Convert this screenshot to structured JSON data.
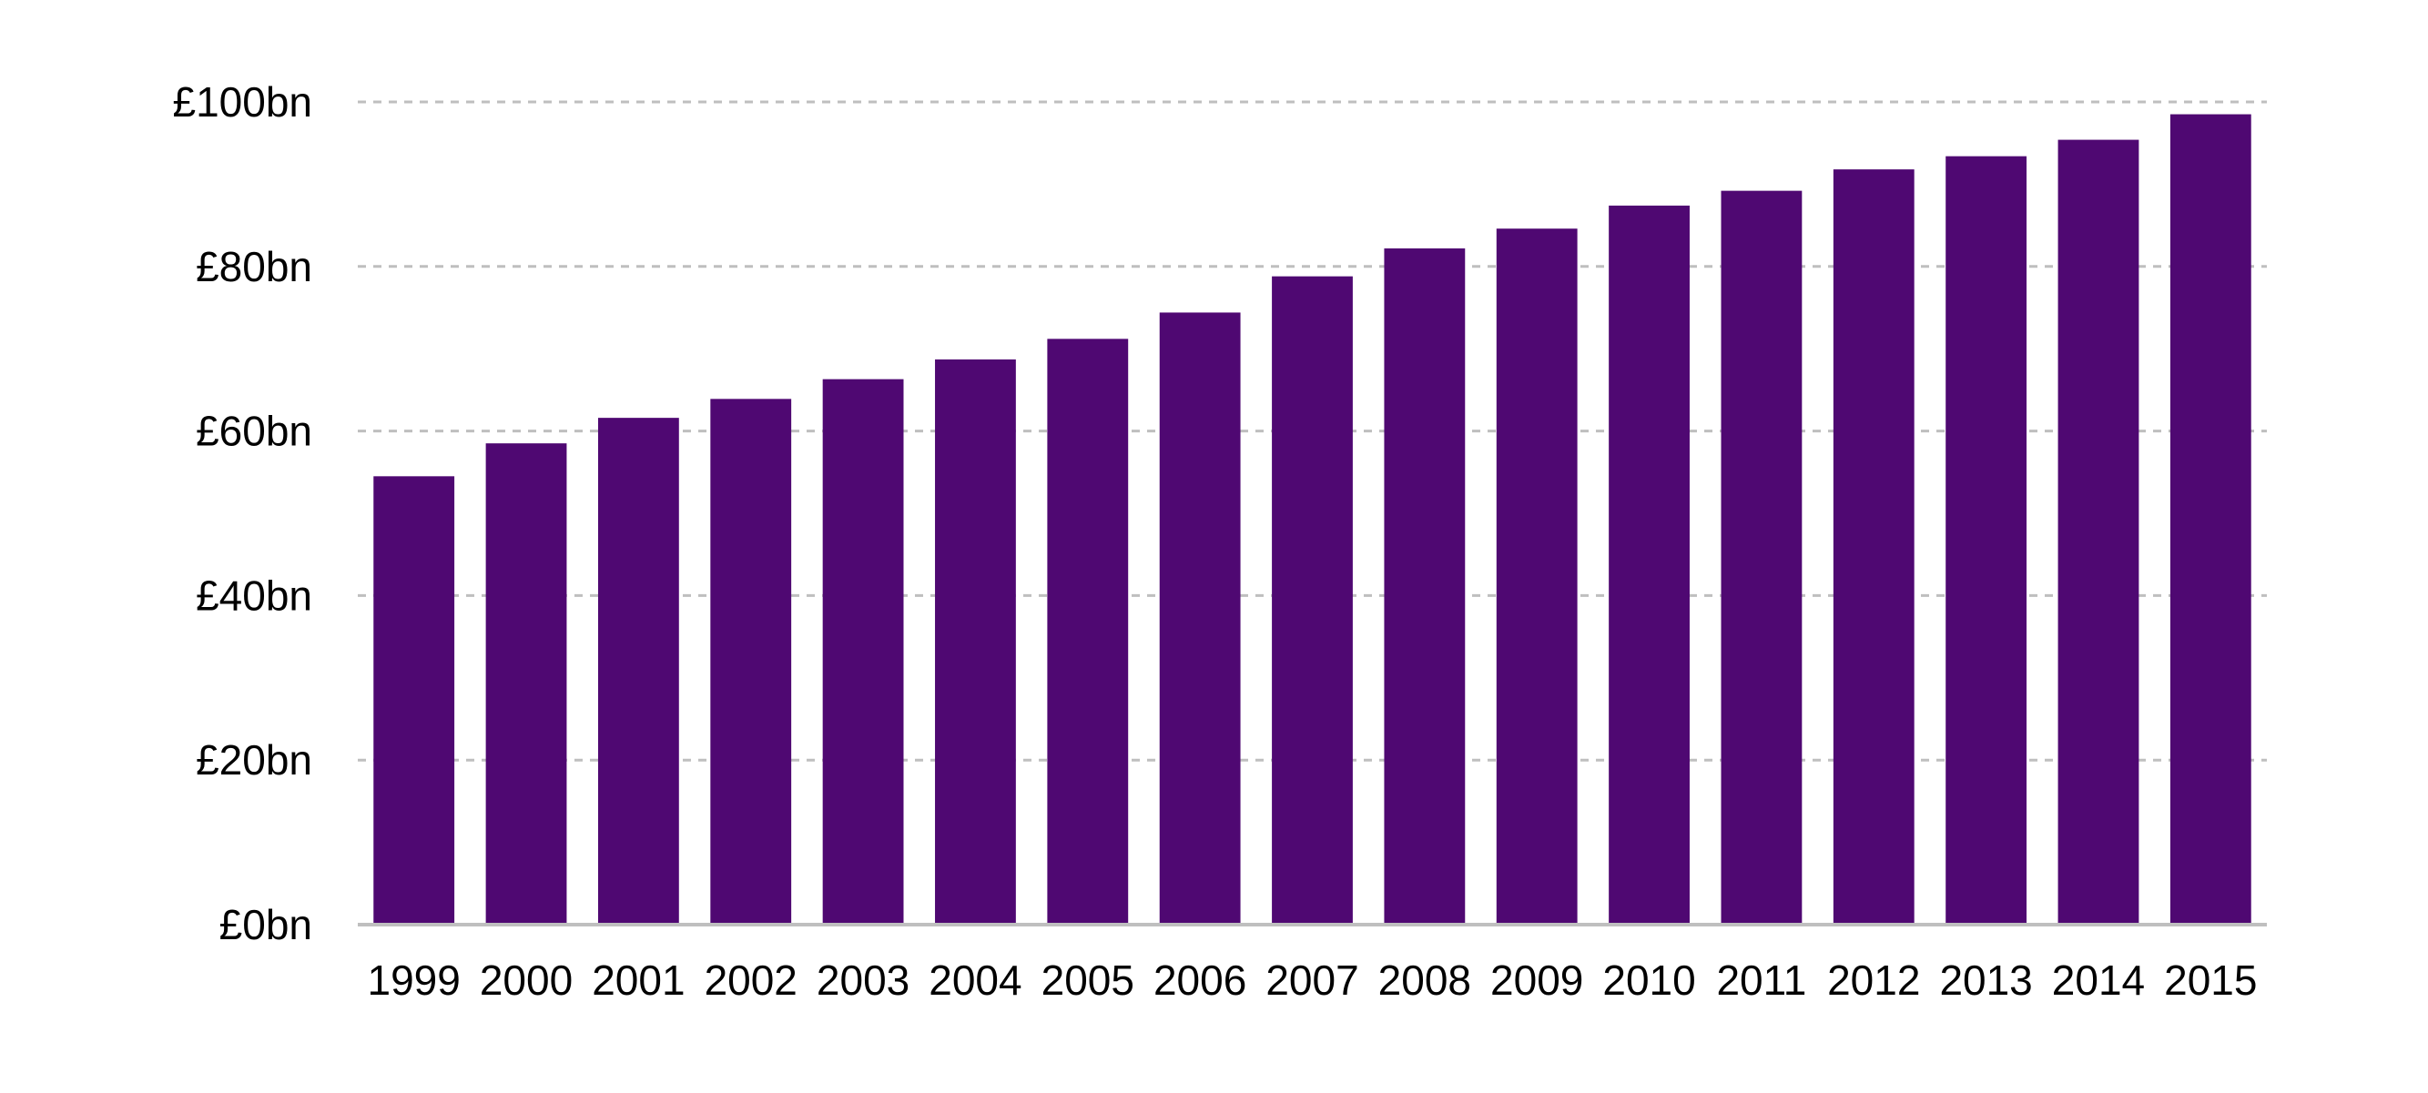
{
  "chart_data": {
    "type": "bar",
    "title": "",
    "xlabel": "",
    "ylabel": "",
    "categories": [
      "1999",
      "2000",
      "2001",
      "2002",
      "2003",
      "2004",
      "2005",
      "2006",
      "2007",
      "2008",
      "2009",
      "2010",
      "2011",
      "2012",
      "2013",
      "2014",
      "2015"
    ],
    "values": [
      54.5,
      58.5,
      61.6,
      63.9,
      66.3,
      68.7,
      71.2,
      74.4,
      78.8,
      82.2,
      84.6,
      87.4,
      89.2,
      91.8,
      93.4,
      95.4,
      98.5
    ],
    "ylim": [
      0,
      100
    ],
    "yticks": [
      0,
      20,
      40,
      60,
      80,
      100
    ],
    "ytick_labels": [
      "£0bn",
      "£20bn",
      "£40bn",
      "£60bn",
      "£80bn",
      "£100bn"
    ],
    "grid": true,
    "legend": "none",
    "colors": {
      "bar": "#4f0872",
      "grid": "#bfbfbf",
      "axis": "#bfbfbf"
    }
  }
}
